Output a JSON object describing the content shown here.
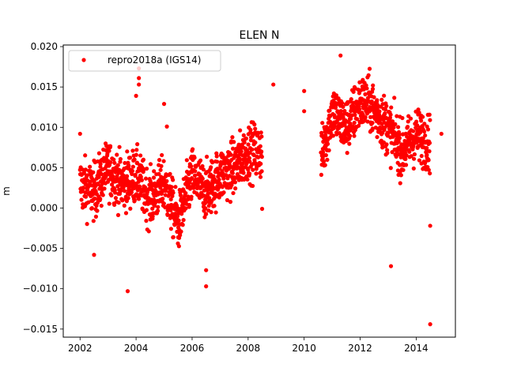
{
  "chart_data": {
    "type": "scatter",
    "title": "ELEN N",
    "xlabel": "",
    "ylabel": "m",
    "xlim": [
      2001.4,
      2015.4
    ],
    "ylim": [
      -0.016,
      0.0202
    ],
    "x_ticks": [
      2002,
      2004,
      2006,
      2008,
      2010,
      2012,
      2014
    ],
    "x_tick_labels": [
      "2002",
      "2004",
      "2006",
      "2008",
      "2010",
      "2012",
      "2014"
    ],
    "y_ticks": [
      -0.015,
      -0.01,
      -0.005,
      0.0,
      0.005,
      0.01,
      0.015,
      0.02
    ],
    "y_tick_labels": [
      "−0.015",
      "−0.010",
      "−0.005",
      "0.000",
      "0.005",
      "0.010",
      "0.015",
      "0.020"
    ],
    "grid": false,
    "legend_position": "upper-left",
    "series": [
      {
        "name": "repro2018a (IGS14)",
        "color": "#ff0000",
        "marker": "circle",
        "trend_points": [
          {
            "x": 2002.0,
            "y": 0.003
          },
          {
            "x": 2002.5,
            "y": 0.002
          },
          {
            "x": 2003.0,
            "y": 0.005
          },
          {
            "x": 2003.5,
            "y": 0.003
          },
          {
            "x": 2004.0,
            "y": 0.004
          },
          {
            "x": 2004.5,
            "y": 0.001
          },
          {
            "x": 2005.0,
            "y": 0.003
          },
          {
            "x": 2005.5,
            "y": -0.002
          },
          {
            "x": 2006.0,
            "y": 0.004
          },
          {
            "x": 2006.5,
            "y": 0.002
          },
          {
            "x": 2007.0,
            "y": 0.004
          },
          {
            "x": 2007.5,
            "y": 0.005
          },
          {
            "x": 2008.0,
            "y": 0.007
          },
          {
            "x": 2008.5,
            "y": 0.007
          },
          {
            "x": 2010.6,
            "y": 0.006
          },
          {
            "x": 2011.0,
            "y": 0.012
          },
          {
            "x": 2011.5,
            "y": 0.01
          },
          {
            "x": 2012.0,
            "y": 0.013
          },
          {
            "x": 2012.3,
            "y": 0.013
          },
          {
            "x": 2013.0,
            "y": 0.01
          },
          {
            "x": 2013.5,
            "y": 0.007
          },
          {
            "x": 2014.0,
            "y": 0.009
          },
          {
            "x": 2014.5,
            "y": 0.008
          }
        ],
        "outliers": [
          {
            "x": 2002.0,
            "y": 0.0092
          },
          {
            "x": 2002.5,
            "y": -0.0058
          },
          {
            "x": 2003.7,
            "y": -0.0103
          },
          {
            "x": 2004.0,
            "y": 0.0139
          },
          {
            "x": 2004.1,
            "y": 0.0161
          },
          {
            "x": 2004.1,
            "y": 0.0173
          },
          {
            "x": 2004.1,
            "y": 0.0153
          },
          {
            "x": 2005.0,
            "y": 0.0129
          },
          {
            "x": 2005.1,
            "y": 0.0101
          },
          {
            "x": 2006.5,
            "y": -0.0097
          },
          {
            "x": 2006.5,
            "y": -0.0077
          },
          {
            "x": 2008.5,
            "y": -0.0001
          },
          {
            "x": 2008.9,
            "y": 0.0153
          },
          {
            "x": 2010.0,
            "y": 0.0145
          },
          {
            "x": 2010.0,
            "y": 0.012
          },
          {
            "x": 2011.3,
            "y": 0.0189
          },
          {
            "x": 2013.1,
            "y": -0.0072
          },
          {
            "x": 2014.5,
            "y": -0.0022
          },
          {
            "x": 2014.5,
            "y": -0.0144
          },
          {
            "x": 2014.9,
            "y": 0.0092
          }
        ]
      }
    ]
  }
}
